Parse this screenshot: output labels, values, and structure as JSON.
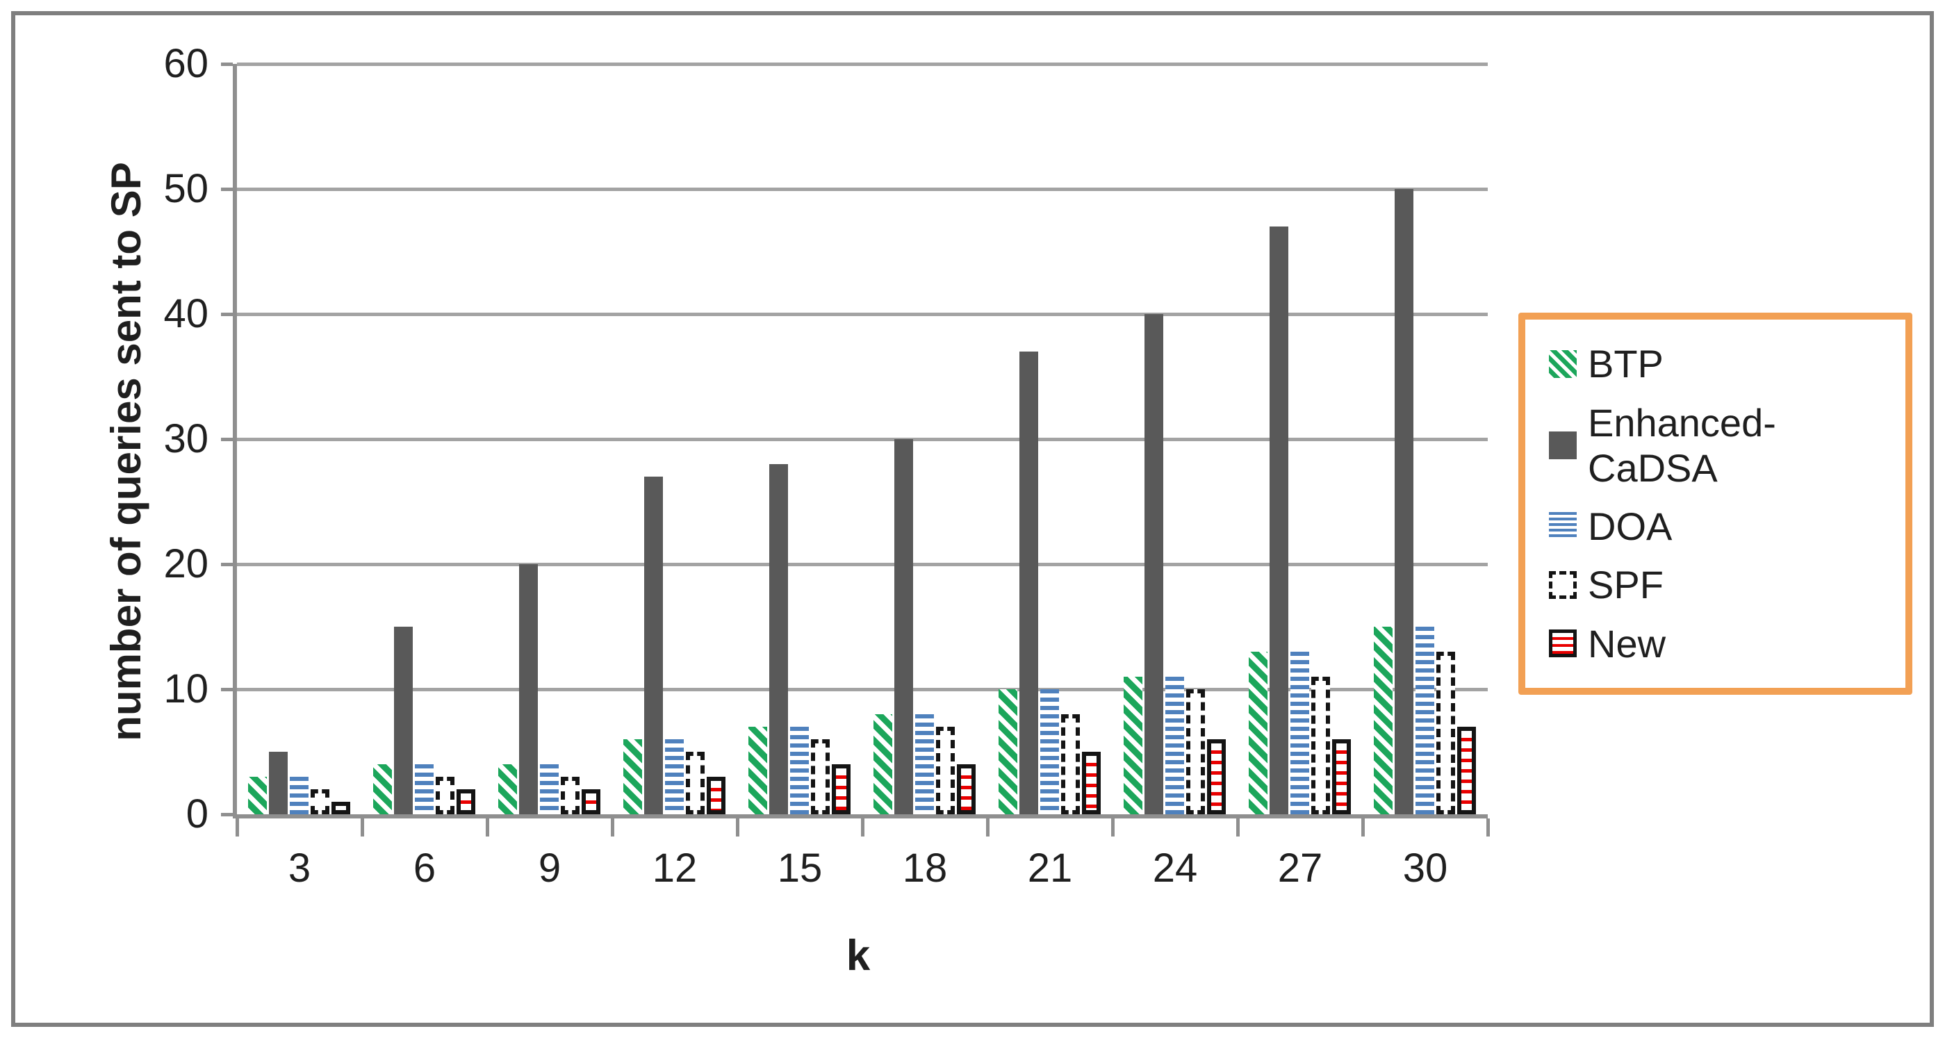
{
  "chart": {
    "y_axis": {
      "ticks": [
        "60",
        "50",
        "40",
        "30",
        "20",
        "10",
        "0"
      ],
      "title": "number of queries sent to SP"
    },
    "x_axis": {
      "title": "k",
      "tick_labels": [
        "3",
        "6",
        "9",
        "12",
        "15",
        "18",
        "21",
        "24",
        "27",
        "30"
      ]
    }
  },
  "chart_data": {
    "type": "bar",
    "title": "",
    "xlabel": "k",
    "ylabel": "number of queries sent to SP",
    "ylim": [
      0,
      60
    ],
    "ystep": 10,
    "grid": "horizontal",
    "legend_position": "right",
    "categories": [
      3,
      6,
      9,
      12,
      15,
      18,
      21,
      24,
      27,
      30
    ],
    "series": [
      {
        "name": "BTP",
        "pattern": "green-diagonal-hatch",
        "color": "#1ca65b",
        "values": [
          3,
          4,
          4,
          6,
          7,
          8,
          10,
          11,
          13,
          15
        ]
      },
      {
        "name": "Enhanced-CaDSA",
        "pattern": "solid-dark-gray",
        "color": "#595959",
        "values": [
          5,
          15,
          20,
          27,
          28,
          30,
          37,
          40,
          47,
          50
        ]
      },
      {
        "name": "DOA",
        "pattern": "blue-horizontal-lines",
        "color": "#4f81bd",
        "values": [
          3,
          4,
          4,
          6,
          7,
          8,
          10,
          11,
          13,
          15
        ]
      },
      {
        "name": "SPF",
        "pattern": "black-dashed-outline",
        "color": "#141414",
        "values": [
          2,
          3,
          3,
          5,
          6,
          7,
          8,
          10,
          11,
          13
        ]
      },
      {
        "name": "New",
        "pattern": "red-horizontal-lines-black-border",
        "color": "#e90000",
        "values": [
          1,
          2,
          2,
          3,
          4,
          4,
          5,
          6,
          6,
          7
        ]
      }
    ]
  },
  "legend": {
    "items": [
      {
        "label": "BTP"
      },
      {
        "label": "Enhanced-CaDSA"
      },
      {
        "label": "DOA"
      },
      {
        "label": "SPF"
      },
      {
        "label": "New"
      }
    ]
  },
  "colors": {
    "btp_green": "#1ca65b",
    "enhanced_cadsa_gray": "#595959",
    "doa_blue": "#4f81bd",
    "new_red": "#e90000",
    "spf_black": "#141414",
    "axis_gray": "#8f8f8f",
    "gridline_gray": "#a3a3a3",
    "legend_border_orange": "#f2a054",
    "outer_frame_gray": "#7f7f7f",
    "text": "#1f1f1f"
  }
}
